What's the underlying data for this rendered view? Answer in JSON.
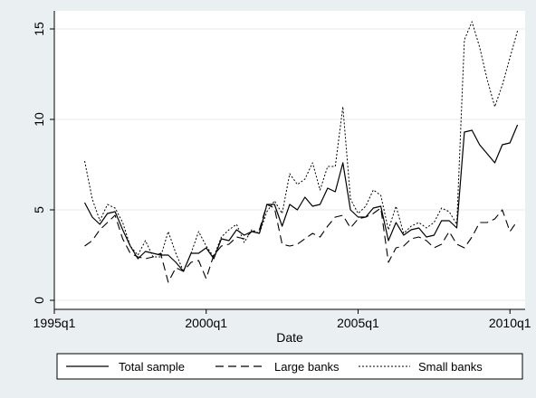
{
  "chart_data": {
    "type": "line",
    "title": "",
    "xlabel": "Date",
    "ylabel": "",
    "x_range": [
      "1995q1",
      "2010q3"
    ],
    "ylim": [
      -0.5,
      16
    ],
    "x_ticks": [
      "1995q1",
      "2000q1",
      "2005q1",
      "2010q1"
    ],
    "y_ticks": [
      "0",
      "5",
      "10",
      "15"
    ],
    "grid": "horizontal",
    "legend_position": "bottom",
    "x": [
      "1996q1",
      "1996q2",
      "1996q3",
      "1996q4",
      "1997q1",
      "1997q2",
      "1997q3",
      "1997q4",
      "1998q1",
      "1998q2",
      "1998q3",
      "1998q4",
      "1999q1",
      "1999q2",
      "1999q3",
      "1999q4",
      "2000q1",
      "2000q2",
      "2000q3",
      "2000q4",
      "2001q1",
      "2001q2",
      "2001q3",
      "2001q4",
      "2002q1",
      "2002q2",
      "2002q3",
      "2002q4",
      "2003q1",
      "2003q2",
      "2003q3",
      "2003q4",
      "2004q1",
      "2004q2",
      "2004q3",
      "2004q4",
      "2005q1",
      "2005q2",
      "2005q3",
      "2005q4",
      "2006q1",
      "2006q2",
      "2006q3",
      "2006q4",
      "2007q1",
      "2007q2",
      "2007q3",
      "2007q4",
      "2008q1",
      "2008q2",
      "2008q3",
      "2008q4",
      "2009q1",
      "2009q2",
      "2009q3",
      "2009q4",
      "2010q1",
      "2010q2"
    ],
    "series": [
      {
        "name": "Total sample",
        "dash": "solid",
        "values": [
          5.4,
          4.6,
          4.2,
          4.8,
          4.9,
          3.9,
          3.0,
          2.3,
          2.7,
          2.6,
          2.5,
          2.5,
          2.1,
          1.6,
          2.6,
          2.6,
          2.9,
          2.3,
          3.4,
          3.3,
          3.9,
          3.6,
          3.8,
          3.7,
          5.3,
          5.3,
          4.1,
          5.3,
          5.0,
          5.7,
          5.2,
          5.3,
          6.2,
          6.0,
          7.6,
          5.0,
          4.6,
          4.6,
          5.1,
          5.2,
          3.3,
          4.3,
          3.6,
          3.9,
          4.0,
          3.5,
          3.6,
          4.4,
          4.4,
          4.0,
          9.3,
          9.4,
          8.6,
          8.1,
          7.6,
          8.6,
          8.7,
          9.7
        ]
      },
      {
        "name": "Large banks",
        "dash": "dashed",
        "values": [
          3.0,
          3.3,
          3.9,
          4.3,
          4.7,
          3.4,
          2.6,
          2.4,
          2.3,
          2.4,
          2.6,
          1.0,
          1.8,
          1.6,
          2.1,
          2.2,
          1.2,
          2.5,
          3.0,
          3.1,
          3.5,
          3.4,
          3.8,
          3.9,
          5.3,
          5.1,
          3.1,
          3.0,
          3.1,
          3.4,
          3.7,
          3.5,
          4.1,
          4.6,
          4.7,
          4.0,
          4.5,
          4.6,
          4.8,
          5.1,
          2.1,
          2.9,
          3.0,
          3.4,
          3.5,
          3.3,
          2.9,
          3.1,
          3.8,
          3.1,
          2.9,
          3.5,
          4.3,
          4.3,
          4.5,
          5.0,
          3.8,
          4.4
        ]
      },
      {
        "name": "Small banks",
        "dash": "dotted",
        "values": [
          7.7,
          5.6,
          4.4,
          5.3,
          5.1,
          4.3,
          3.0,
          2.5,
          3.3,
          2.4,
          2.4,
          3.8,
          2.6,
          1.6,
          2.6,
          3.8,
          3.0,
          2.4,
          3.5,
          3.9,
          4.2,
          3.2,
          3.9,
          3.7,
          4.9,
          5.5,
          4.8,
          7.0,
          6.4,
          6.7,
          7.6,
          6.1,
          7.4,
          7.4,
          10.7,
          5.6,
          4.8,
          5.2,
          6.1,
          5.8,
          3.9,
          5.2,
          3.7,
          4.1,
          4.3,
          4.0,
          4.3,
          5.1,
          4.9,
          4.2,
          14.4,
          15.4,
          14.0,
          12.2,
          10.7,
          11.9,
          13.4,
          14.9
        ]
      }
    ]
  }
}
